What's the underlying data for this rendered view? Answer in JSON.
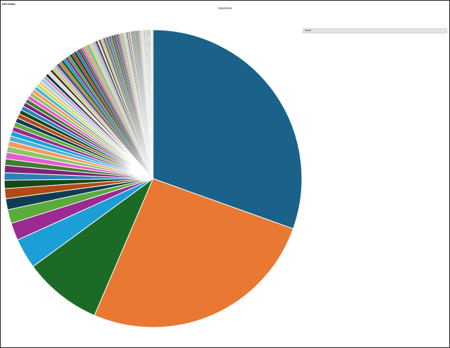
{
  "header": {
    "corner_label": "DECIMAL"
  },
  "chart_data": {
    "type": "pie",
    "title": "Industries",
    "slices": [
      {
        "value": 30.5,
        "color": "#1a6289"
      },
      {
        "value": 26.0,
        "color": "#e87832"
      },
      {
        "value": 8.5,
        "color": "#1b6b27"
      },
      {
        "value": 3.3,
        "color": "#1c9ed7"
      },
      {
        "value": 1.9,
        "color": "#9b2a92"
      },
      {
        "value": 1.5,
        "color": "#5aab3a"
      },
      {
        "value": 1.2,
        "color": "#0f3d55"
      },
      {
        "value": 1.1,
        "color": "#b24a14"
      },
      {
        "value": 0.9,
        "color": "#17461b"
      },
      {
        "value": 0.8,
        "color": "#2a7fb8"
      },
      {
        "value": 0.8,
        "color": "#7e2377"
      },
      {
        "value": 0.7,
        "color": "#3d7f2e"
      },
      {
        "value": 0.7,
        "color": "#e85ad5"
      },
      {
        "value": 0.65,
        "color": "#8fc36b"
      },
      {
        "value": 0.6,
        "color": "#f49a5a"
      },
      {
        "value": 0.55,
        "color": "#4cb0d9"
      }
    ],
    "small_slices": {
      "count": 118,
      "total": 20.39
    },
    "legend": {
      "header": "Name",
      "entries": []
    }
  }
}
